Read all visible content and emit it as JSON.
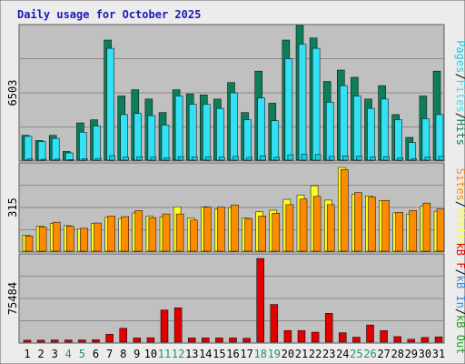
{
  "title": "Daily usage for October 2025",
  "colors": {
    "background": "#ececec",
    "panel": "#c0c0c0",
    "frame": "#5e5e5e",
    "title": "#1a1ab4",
    "hits": "#0e7d5a",
    "files": "#33e0f5",
    "pages": "#1ecbd6",
    "visits": "#fefe1e",
    "sites": "#fe8a00",
    "kbf": "#e00000",
    "kbin": "#2a8cf0",
    "kbout": "#1e9b1e",
    "weekend": "#2a9060"
  },
  "days": [
    "1",
    "2",
    "3",
    "4",
    "5",
    "6",
    "7",
    "8",
    "9",
    "10",
    "11",
    "12",
    "13",
    "14",
    "15",
    "16",
    "17",
    "18",
    "19",
    "20",
    "21",
    "22",
    "23",
    "24",
    "25",
    "26",
    "27",
    "28",
    "29",
    "30",
    "31"
  ],
  "weekend_days": [
    4,
    5,
    11,
    12,
    18,
    19,
    25,
    26
  ],
  "panels": {
    "top": {
      "max_label": "6503",
      "legend": {
        "pages": "Pages",
        "sep1": "/",
        "files": "Files",
        "sep2": "/",
        "hits": "Hits"
      }
    },
    "middle": {
      "max_label": "315",
      "legend": {
        "sites": "Sites",
        "sep": "/",
        "visits": "Visits"
      }
    },
    "bottom": {
      "max_label": "75484",
      "legend": {
        "kbf": "kB F",
        "sep1": "/",
        "kbin": "kB In",
        "sep2": "/",
        "kbout": "kB Out"
      }
    }
  },
  "chart_data": [
    {
      "type": "bar",
      "name": "Hits / Files / Pages",
      "ylim": [
        0,
        6503
      ],
      "categories": [
        "1",
        "2",
        "3",
        "4",
        "5",
        "6",
        "7",
        "8",
        "9",
        "10",
        "11",
        "12",
        "13",
        "14",
        "15",
        "16",
        "17",
        "18",
        "19",
        "20",
        "21",
        "22",
        "23",
        "24",
        "25",
        "26",
        "27",
        "28",
        "29",
        "30",
        "31"
      ],
      "series": [
        {
          "name": "Hits",
          "values": [
            1200,
            950,
            1200,
            420,
            1800,
            1950,
            5800,
            3100,
            3400,
            2950,
            2300,
            3400,
            3200,
            3150,
            2950,
            3750,
            2300,
            4300,
            2750,
            5800,
            6503,
            5900,
            3800,
            4350,
            4000,
            2950,
            3600,
            2200,
            1100,
            3100,
            4300
          ]
        },
        {
          "name": "Files",
          "values": [
            1150,
            900,
            1050,
            350,
            1350,
            1650,
            5400,
            2200,
            2250,
            2150,
            1700,
            3100,
            2700,
            2700,
            2500,
            3250,
            1950,
            3000,
            1900,
            4900,
            5600,
            5400,
            2800,
            3600,
            3100,
            2500,
            2950,
            1950,
            850,
            2000,
            2200
          ]
        },
        {
          "name": "Pages",
          "values": [
            600,
            450,
            500,
            200,
            700,
            850,
            2200,
            1500,
            1600,
            1400,
            1200,
            1700,
            1600,
            1500,
            1400,
            1800,
            1300,
            2100,
            1400,
            2600,
            2900,
            2700,
            1800,
            2100,
            1900,
            1500,
            1700,
            1200,
            700,
            1500,
            1800
          ]
        }
      ]
    },
    {
      "type": "bar",
      "name": "Visits / Sites",
      "ylim": [
        0,
        315
      ],
      "categories": [
        "1",
        "2",
        "3",
        "4",
        "5",
        "6",
        "7",
        "8",
        "9",
        "10",
        "11",
        "12",
        "13",
        "14",
        "15",
        "16",
        "17",
        "18",
        "19",
        "20",
        "21",
        "22",
        "23",
        "24",
        "25",
        "26",
        "27",
        "28",
        "29",
        "30",
        "31"
      ],
      "series": [
        {
          "name": "Visits",
          "values": [
            60,
            94,
            104,
            96,
            83,
            104,
            127,
            123,
            144,
            131,
            129,
            167,
            124,
            167,
            158,
            164,
            124,
            148,
            154,
            195,
            211,
            246,
            192,
            315,
            214,
            208,
            191,
            144,
            139,
            170,
            150
          ]
        },
        {
          "name": "Sites",
          "values": [
            57,
            91,
            109,
            94,
            86,
            106,
            132,
            130,
            153,
            126,
            140,
            140,
            117,
            166,
            166,
            174,
            123,
            132,
            143,
            175,
            196,
            206,
            175,
            307,
            220,
            203,
            191,
            146,
            153,
            181,
            159
          ]
        }
      ]
    },
    {
      "type": "bar",
      "name": "kB F / kB In / kB Out",
      "ylim": [
        0,
        75484
      ],
      "categories": [
        "1",
        "2",
        "3",
        "4",
        "5",
        "6",
        "7",
        "8",
        "9",
        "10",
        "11",
        "12",
        "13",
        "14",
        "15",
        "16",
        "17",
        "18",
        "19",
        "20",
        "21",
        "22",
        "23",
        "24",
        "25",
        "26",
        "27",
        "28",
        "29",
        "30",
        "31"
      ],
      "series": [
        {
          "name": "kB F",
          "values": [
            1800,
            1800,
            2000,
            2000,
            2000,
            2200,
            7200,
            12500,
            3800,
            4000,
            29000,
            31000,
            3800,
            3800,
            3800,
            3800,
            3500,
            75484,
            34000,
            10500,
            10500,
            9000,
            26000,
            8500,
            4500,
            15500,
            10500,
            5000,
            2600,
            4200,
            4800
          ]
        },
        {
          "name": "kB In",
          "values": [
            0,
            0,
            0,
            0,
            0,
            0,
            0,
            0,
            0,
            0,
            0,
            0,
            0,
            0,
            0,
            0,
            0,
            0,
            0,
            0,
            0,
            0,
            0,
            0,
            0,
            0,
            0,
            0,
            0,
            0,
            0
          ]
        },
        {
          "name": "kB Out",
          "values": [
            0,
            0,
            0,
            0,
            0,
            0,
            0,
            0,
            0,
            0,
            0,
            0,
            0,
            0,
            0,
            0,
            0,
            0,
            0,
            0,
            0,
            0,
            0,
            0,
            0,
            0,
            0,
            0,
            0,
            0,
            0
          ]
        }
      ]
    }
  ]
}
